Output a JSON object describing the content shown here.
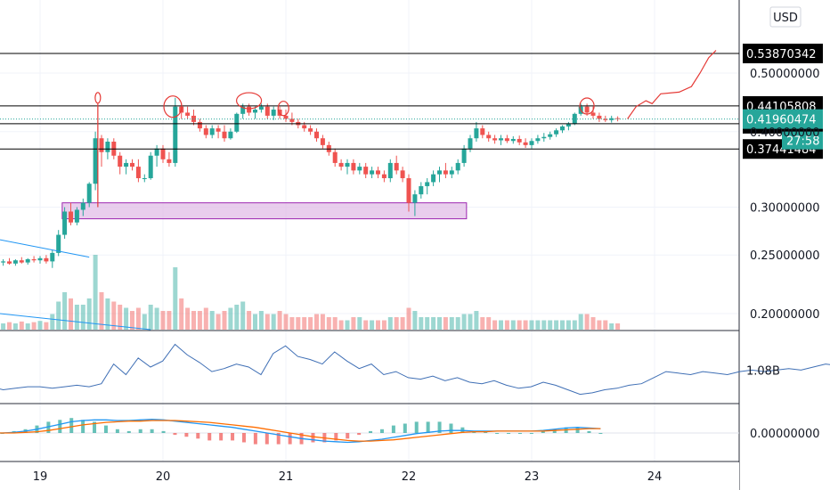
{
  "currency_button": "USD",
  "countdown": "27:58",
  "colors": {
    "up": "#26a69a",
    "down": "#ef5350",
    "annotation": "#e53935",
    "trendline": "#2196f3",
    "macd": "#2196f3",
    "signal": "#ff6d00",
    "obv": "#3f6fb5",
    "zone_fill": "#e1bee7",
    "zone_stroke": "#9c27b0",
    "price_tag": "#26a69a",
    "level_tag": "#000000"
  },
  "price_axis": {
    "ticks": [
      "0.50000000",
      "0.40000000",
      "0.30000000",
      "0.25000000",
      "0.20000000"
    ],
    "scale": "log"
  },
  "time_axis": {
    "ticks": [
      "19",
      "20",
      "21",
      "22",
      "23",
      "24"
    ]
  },
  "horizontal_levels": [
    {
      "label": "0.53870342",
      "value": 0.5387
    },
    {
      "label": "0.44105808",
      "value": 0.4411
    },
    {
      "label": "0.41223661",
      "value": 0.4122
    },
    {
      "label": "0.37441484",
      "value": 0.3744
    }
  ],
  "last_price": {
    "label": "0.41960474",
    "value": 0.4196
  },
  "obv_panel": {
    "tick": "1.08B"
  },
  "macd_panel": {
    "tick": "0.00000000"
  },
  "chart_data": {
    "type": "candlestick",
    "x_unit": "day",
    "price_scale": "log",
    "candles": [
      [
        18.6,
        0.243,
        0.245,
        0.239,
        0.241
      ],
      [
        18.65,
        0.241,
        0.244,
        0.238,
        0.243
      ],
      [
        18.7,
        0.243,
        0.246,
        0.24,
        0.244
      ],
      [
        18.75,
        0.244,
        0.247,
        0.241,
        0.242
      ],
      [
        18.8,
        0.242,
        0.246,
        0.24,
        0.245
      ],
      [
        18.85,
        0.245,
        0.248,
        0.242,
        0.243
      ],
      [
        18.9,
        0.243,
        0.247,
        0.241,
        0.246
      ],
      [
        18.95,
        0.246,
        0.249,
        0.243,
        0.245
      ],
      [
        19.0,
        0.245,
        0.249,
        0.242,
        0.247
      ],
      [
        19.05,
        0.247,
        0.25,
        0.242,
        0.244
      ],
      [
        19.1,
        0.244,
        0.255,
        0.238,
        0.252
      ],
      [
        19.15,
        0.252,
        0.275,
        0.249,
        0.27
      ],
      [
        19.2,
        0.27,
        0.3,
        0.266,
        0.295
      ],
      [
        19.25,
        0.295,
        0.305,
        0.28,
        0.283
      ],
      [
        19.3,
        0.283,
        0.3,
        0.28,
        0.297
      ],
      [
        19.35,
        0.297,
        0.31,
        0.29,
        0.305
      ],
      [
        19.4,
        0.305,
        0.33,
        0.3,
        0.328
      ],
      [
        19.45,
        0.328,
        0.4,
        0.32,
        0.39
      ],
      [
        19.5,
        0.39,
        0.395,
        0.35,
        0.37
      ],
      [
        19.55,
        0.37,
        0.39,
        0.36,
        0.385
      ],
      [
        19.6,
        0.385,
        0.39,
        0.36,
        0.365
      ],
      [
        19.65,
        0.365,
        0.37,
        0.34,
        0.35
      ],
      [
        19.7,
        0.35,
        0.36,
        0.34,
        0.355
      ],
      [
        19.75,
        0.355,
        0.36,
        0.345,
        0.35
      ],
      [
        19.8,
        0.35,
        0.36,
        0.33,
        0.335
      ],
      [
        19.85,
        0.335,
        0.34,
        0.33,
        0.335
      ],
      [
        19.9,
        0.335,
        0.37,
        0.333,
        0.365
      ],
      [
        19.95,
        0.365,
        0.38,
        0.35,
        0.375
      ],
      [
        20.0,
        0.375,
        0.38,
        0.355,
        0.36
      ],
      [
        20.05,
        0.36,
        0.37,
        0.35,
        0.355
      ],
      [
        20.1,
        0.355,
        0.455,
        0.35,
        0.44
      ],
      [
        20.15,
        0.44,
        0.445,
        0.42,
        0.43
      ],
      [
        20.2,
        0.43,
        0.44,
        0.42,
        0.425
      ],
      [
        20.25,
        0.425,
        0.435,
        0.41,
        0.415
      ],
      [
        20.3,
        0.415,
        0.42,
        0.4,
        0.405
      ],
      [
        20.35,
        0.405,
        0.41,
        0.39,
        0.395
      ],
      [
        20.4,
        0.395,
        0.41,
        0.39,
        0.405
      ],
      [
        20.45,
        0.405,
        0.41,
        0.39,
        0.4
      ],
      [
        20.5,
        0.4,
        0.41,
        0.385,
        0.39
      ],
      [
        20.55,
        0.39,
        0.405,
        0.388,
        0.4
      ],
      [
        20.6,
        0.4,
        0.43,
        0.398,
        0.428
      ],
      [
        20.65,
        0.428,
        0.445,
        0.42,
        0.44
      ],
      [
        20.7,
        0.44,
        0.445,
        0.425,
        0.43
      ],
      [
        20.75,
        0.43,
        0.44,
        0.42,
        0.435
      ],
      [
        20.8,
        0.435,
        0.445,
        0.43,
        0.44
      ],
      [
        20.85,
        0.44,
        0.445,
        0.42,
        0.425
      ],
      [
        20.9,
        0.425,
        0.44,
        0.418,
        0.435
      ],
      [
        20.95,
        0.435,
        0.44,
        0.42,
        0.425
      ],
      [
        21.0,
        0.425,
        0.435,
        0.415,
        0.42
      ],
      [
        21.05,
        0.42,
        0.43,
        0.41,
        0.415
      ],
      [
        21.1,
        0.415,
        0.42,
        0.405,
        0.41
      ],
      [
        21.15,
        0.41,
        0.415,
        0.4,
        0.405
      ],
      [
        21.2,
        0.405,
        0.41,
        0.395,
        0.4
      ],
      [
        21.25,
        0.4,
        0.405,
        0.385,
        0.39
      ],
      [
        21.3,
        0.39,
        0.395,
        0.375,
        0.38
      ],
      [
        21.35,
        0.38,
        0.385,
        0.365,
        0.37
      ],
      [
        21.4,
        0.37,
        0.375,
        0.35,
        0.355
      ],
      [
        21.45,
        0.355,
        0.36,
        0.345,
        0.35
      ],
      [
        21.5,
        0.35,
        0.36,
        0.34,
        0.355
      ],
      [
        21.55,
        0.355,
        0.36,
        0.34,
        0.345
      ],
      [
        21.6,
        0.345,
        0.355,
        0.34,
        0.35
      ],
      [
        21.65,
        0.35,
        0.355,
        0.335,
        0.34
      ],
      [
        21.7,
        0.34,
        0.35,
        0.335,
        0.345
      ],
      [
        21.75,
        0.345,
        0.35,
        0.335,
        0.34
      ],
      [
        21.8,
        0.34,
        0.345,
        0.33,
        0.335
      ],
      [
        21.85,
        0.335,
        0.36,
        0.33,
        0.355
      ],
      [
        21.9,
        0.355,
        0.365,
        0.34,
        0.345
      ],
      [
        21.95,
        0.345,
        0.35,
        0.33,
        0.335
      ],
      [
        22.0,
        0.335,
        0.34,
        0.295,
        0.305
      ],
      [
        22.05,
        0.305,
        0.32,
        0.29,
        0.315
      ],
      [
        22.1,
        0.315,
        0.33,
        0.31,
        0.325
      ],
      [
        22.15,
        0.325,
        0.335,
        0.315,
        0.33
      ],
      [
        22.2,
        0.33,
        0.345,
        0.325,
        0.34
      ],
      [
        22.25,
        0.34,
        0.35,
        0.33,
        0.345
      ],
      [
        22.3,
        0.345,
        0.355,
        0.335,
        0.34
      ],
      [
        22.35,
        0.34,
        0.35,
        0.335,
        0.345
      ],
      [
        22.4,
        0.345,
        0.36,
        0.34,
        0.355
      ],
      [
        22.45,
        0.355,
        0.38,
        0.35,
        0.375
      ],
      [
        22.5,
        0.375,
        0.395,
        0.37,
        0.39
      ],
      [
        22.55,
        0.39,
        0.415,
        0.385,
        0.405
      ],
      [
        22.6,
        0.405,
        0.41,
        0.39,
        0.395
      ],
      [
        22.65,
        0.395,
        0.4,
        0.385,
        0.39
      ],
      [
        22.7,
        0.39,
        0.395,
        0.382,
        0.387
      ],
      [
        22.75,
        0.387,
        0.395,
        0.38,
        0.39
      ],
      [
        22.8,
        0.39,
        0.395,
        0.383,
        0.386
      ],
      [
        22.85,
        0.386,
        0.393,
        0.382,
        0.389
      ],
      [
        22.9,
        0.389,
        0.394,
        0.38,
        0.384
      ],
      [
        22.95,
        0.384,
        0.39,
        0.376,
        0.38
      ],
      [
        23.0,
        0.38,
        0.39,
        0.375,
        0.386
      ],
      [
        23.05,
        0.386,
        0.395,
        0.382,
        0.39
      ],
      [
        23.1,
        0.39,
        0.398,
        0.385,
        0.392
      ],
      [
        23.15,
        0.392,
        0.4,
        0.388,
        0.396
      ],
      [
        23.2,
        0.396,
        0.405,
        0.392,
        0.402
      ],
      [
        23.25,
        0.402,
        0.41,
        0.398,
        0.408
      ],
      [
        23.3,
        0.408,
        0.415,
        0.402,
        0.412
      ],
      [
        23.35,
        0.412,
        0.43,
        0.41,
        0.428
      ],
      [
        23.4,
        0.428,
        0.445,
        0.425,
        0.44
      ],
      [
        23.45,
        0.44,
        0.445,
        0.425,
        0.43
      ],
      [
        23.5,
        0.43,
        0.44,
        0.42,
        0.425
      ],
      [
        23.55,
        0.425,
        0.43,
        0.415,
        0.42
      ],
      [
        23.6,
        0.42,
        0.425,
        0.415,
        0.418
      ],
      [
        23.65,
        0.418,
        0.425,
        0.414,
        0.421
      ],
      [
        23.7,
        0.421,
        0.424,
        0.416,
        0.4196
      ]
    ],
    "volume": [
      0.15,
      0.1,
      0.1,
      0.12,
      0.1,
      0.13,
      0.1,
      0.12,
      0.14,
      0.12,
      0.25,
      0.45,
      0.6,
      0.5,
      0.4,
      0.4,
      0.5,
      1.2,
      0.6,
      0.5,
      0.45,
      0.4,
      0.35,
      0.3,
      0.35,
      0.25,
      0.4,
      0.35,
      0.3,
      0.3,
      1.0,
      0.5,
      0.35,
      0.3,
      0.3,
      0.35,
      0.3,
      0.25,
      0.3,
      0.35,
      0.4,
      0.45,
      0.3,
      0.25,
      0.3,
      0.25,
      0.25,
      0.3,
      0.25,
      0.2,
      0.2,
      0.2,
      0.2,
      0.25,
      0.25,
      0.2,
      0.2,
      0.15,
      0.15,
      0.2,
      0.2,
      0.15,
      0.15,
      0.15,
      0.15,
      0.2,
      0.2,
      0.2,
      0.35,
      0.3,
      0.2,
      0.2,
      0.2,
      0.2,
      0.2,
      0.2,
      0.2,
      0.25,
      0.25,
      0.3,
      0.2,
      0.2,
      0.15,
      0.15,
      0.15,
      0.15,
      0.15,
      0.15,
      0.15,
      0.15,
      0.15,
      0.15,
      0.15,
      0.15,
      0.15,
      0.15,
      0.25,
      0.25,
      0.2,
      0.15,
      0.15,
      0.1,
      0.1
    ],
    "obv": [
      0.97,
      0.95,
      0.96,
      0.97,
      0.97,
      0.96,
      0.97,
      0.98,
      0.97,
      0.99,
      1.12,
      1.05,
      1.16,
      1.1,
      1.14,
      1.25,
      1.18,
      1.13,
      1.07,
      1.09,
      1.12,
      1.1,
      1.05,
      1.19,
      1.24,
      1.17,
      1.15,
      1.12,
      1.2,
      1.14,
      1.09,
      1.12,
      1.05,
      1.07,
      1.03,
      1.02,
      1.04,
      1.01,
      1.03,
      1.0,
      0.99,
      1.01,
      0.98,
      0.96,
      0.97,
      1.0,
      0.98,
      0.95,
      0.92,
      0.93,
      0.95,
      0.96,
      0.98,
      0.99,
      1.03,
      1.07,
      1.06,
      1.05,
      1.07,
      1.06,
      1.05,
      1.07,
      1.08,
      1.07,
      1.08,
      1.09,
      1.08,
      1.1,
      1.12,
      1.11,
      1.1,
      1.09,
      1.08,
      1.09,
      1.08
    ],
    "obv_x_start": 18.6,
    "obv_x_step": 0.0425,
    "macd": [
      0,
      0,
      0.001,
      0.003,
      0.006,
      0.01,
      0.014,
      0.018,
      0.02,
      0.021,
      0.021,
      0.02,
      0.02,
      0.021,
      0.022,
      0.021,
      0.019,
      0.017,
      0.015,
      0.013,
      0.011,
      0.009,
      0.006,
      0.003,
      0,
      -0.003,
      -0.006,
      -0.009,
      -0.011,
      -0.013,
      -0.014,
      -0.015,
      -0.014,
      -0.012,
      -0.01,
      -0.007,
      -0.004,
      -0.001,
      0.001,
      0.003,
      0.004,
      0.004,
      0.003,
      0.003,
      0.003,
      0.003,
      0.003,
      0.003,
      0.004,
      0.006,
      0.008,
      0.009,
      0.008,
      0.007
    ],
    "signal": [
      0,
      0,
      0,
      0.001,
      0.002,
      0.004,
      0.007,
      0.01,
      0.013,
      0.015,
      0.017,
      0.018,
      0.019,
      0.019,
      0.02,
      0.02,
      0.02,
      0.019,
      0.018,
      0.017,
      0.015,
      0.013,
      0.011,
      0.009,
      0.006,
      0.003,
      0,
      -0.003,
      -0.006,
      -0.008,
      -0.01,
      -0.012,
      -0.013,
      -0.013,
      -0.012,
      -0.011,
      -0.009,
      -0.007,
      -0.005,
      -0.003,
      -0.001,
      0.001,
      0.002,
      0.002,
      0.003,
      0.003,
      0.003,
      0.003,
      0.003,
      0.004,
      0.005,
      0.006,
      0.007,
      0.007
    ],
    "macd_x_start": 18.6,
    "macd_x_step": 0.0585
  }
}
